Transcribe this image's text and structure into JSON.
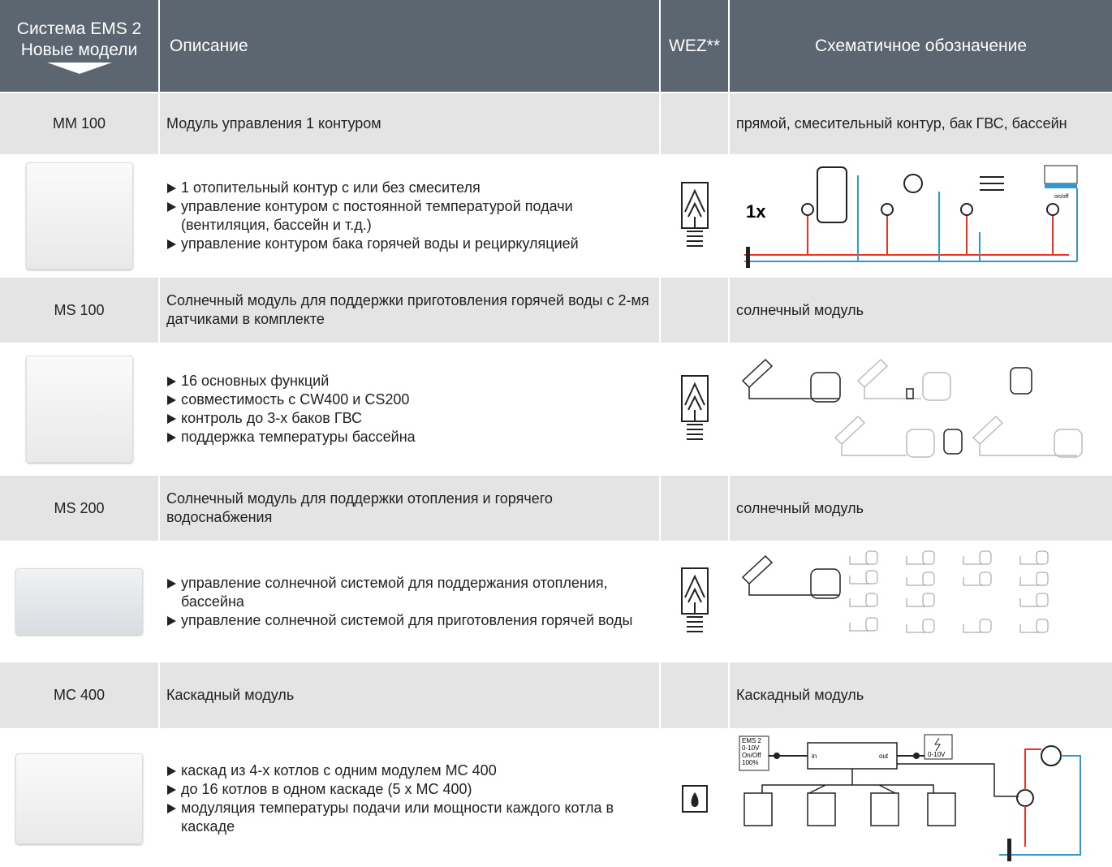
{
  "header": {
    "system": [
      "Система EMS 2",
      "Новые модели"
    ],
    "description": "Описание",
    "wez": "WEZ**",
    "schematic": "Схематичное обозначение"
  },
  "rows": [
    {
      "model": "MM 100",
      "description": "Модуль управления 1 контуром",
      "schematic": "прямой, смесительный контур, бак ГВС, бассейн",
      "features": [
        "1 отопительный контур с или без смесителя",
        "управление контуром с постоянной температурой подачи (вентиляция, бассейн и т.д.)",
        "управление контуром бака горячей воды и рециркуляцией"
      ],
      "diagram_labels": [
        "1x",
        "on/off"
      ]
    },
    {
      "model": "MS 100",
      "description": "Солнечный модуль для поддержки приготовления горячей воды с 2-мя датчиками в комплекте",
      "schematic": "солнечный модуль",
      "features": [
        "16 основных функций",
        "совместимость с CW400 и CS200",
        "контроль до 3-х баков ГВС",
        "поддержка температуры бассейна"
      ]
    },
    {
      "model": "MS 200",
      "description": "Солнечный модуль для поддержки отопления и горячего водоснабжения",
      "schematic": "солнечный модуль",
      "features": [
        "управление солнечной системой для поддержания отопления, бассейна",
        "управление солнечной системой для приготовления горячей воды"
      ]
    },
    {
      "model": "MC 400",
      "description": "Каскадный модуль",
      "schematic": "Каскадный модуль",
      "features": [
        "каскад из 4-х котлов с одним модулем MC 400",
        "до 16 котлов в одном каскаде (5 x MC 400)",
        "модуляция температуры подачи или мощности каждого котла в каскаде"
      ],
      "diagram_labels": [
        "EMS 2",
        "0-10V",
        "On/Off",
        "100%",
        "in",
        "out",
        "0-10V"
      ]
    }
  ]
}
